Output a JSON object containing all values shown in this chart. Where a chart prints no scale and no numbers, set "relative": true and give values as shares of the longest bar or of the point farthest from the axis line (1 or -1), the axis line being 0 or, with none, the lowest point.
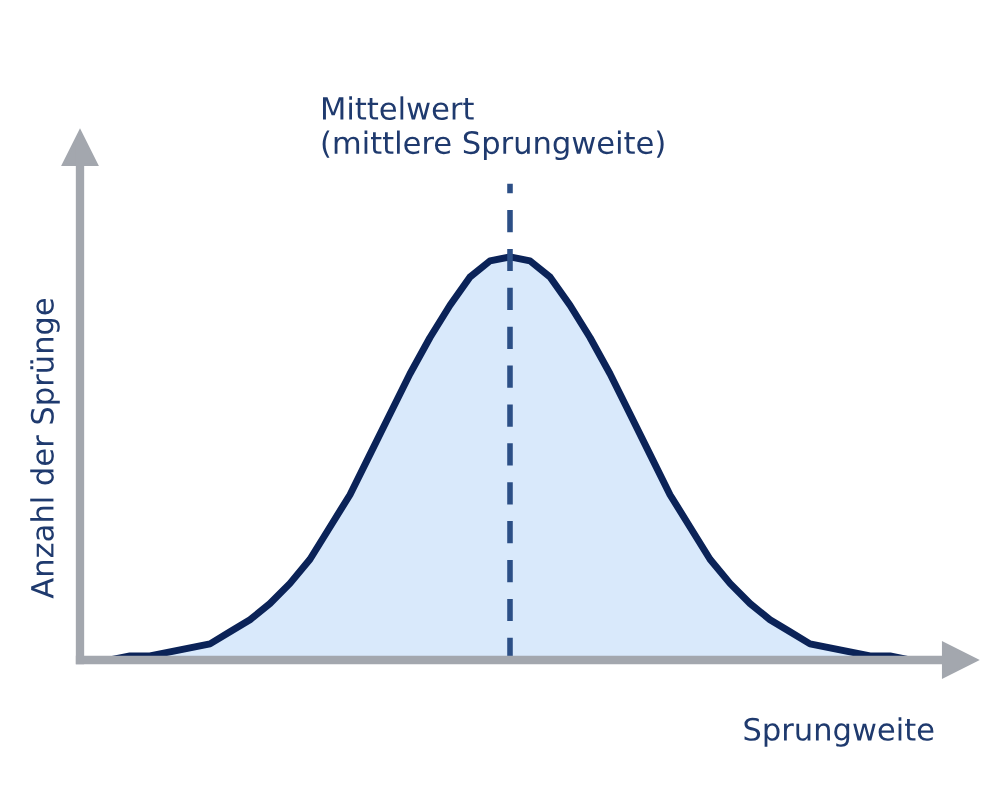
{
  "chart_data": {
    "type": "area",
    "relative": true,
    "xlabel": "Sprungweite",
    "ylabel": "Anzahl der Sprünge",
    "categories": [
      null,
      null,
      null,
      null,
      null,
      null,
      null,
      null,
      null,
      null,
      null,
      null,
      null,
      null,
      null,
      null,
      null,
      null,
      null,
      null,
      null,
      null,
      null,
      null,
      null,
      null,
      null,
      null,
      null,
      null,
      null,
      null,
      null,
      null,
      null,
      null,
      null,
      null,
      null,
      null,
      null
    ],
    "series": [
      {
        "color": "#0b2358",
        "values": [
          0.0,
          0.01,
          0.01,
          0.02,
          0.03,
          0.04,
          0.07,
          0.1,
          0.14,
          0.19,
          0.25,
          0.33,
          0.41,
          0.51,
          0.61,
          0.71,
          0.8,
          0.88,
          0.95,
          0.99,
          1.0,
          0.99,
          0.95,
          0.88,
          0.8,
          0.71,
          0.61,
          0.51,
          0.41,
          0.33,
          0.25,
          0.19,
          0.14,
          0.1,
          0.07,
          0.04,
          0.03,
          0.02,
          0.01,
          0.01,
          0.0
        ]
      }
    ],
    "annotations": [
      "Mittelwert\n(mittlere Sprungweite)"
    ]
  }
}
